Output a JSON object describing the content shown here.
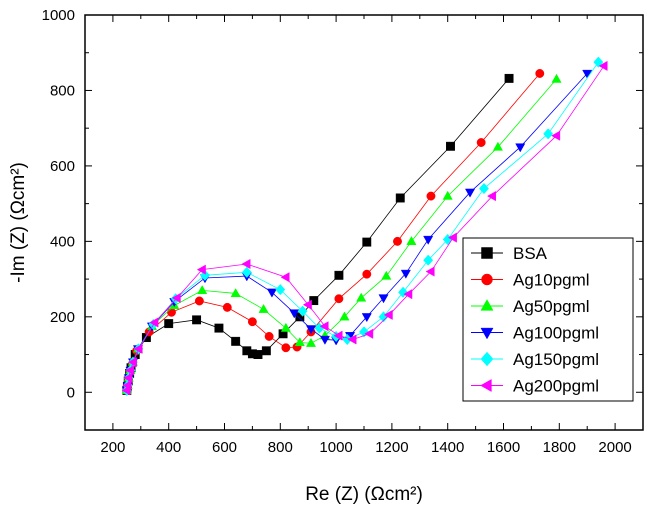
{
  "chart_data": {
    "type": "scatter",
    "title": "",
    "xlabel": "Re (Z) (Ωcm²)",
    "ylabel": "-Im (Z) (Ωcm²)",
    "xlim": [
      100,
      2100
    ],
    "ylim": [
      -100,
      1000
    ],
    "xticks": [
      200,
      400,
      600,
      800,
      1000,
      1200,
      1400,
      1600,
      1800,
      2000
    ],
    "yticks": [
      0,
      200,
      400,
      600,
      800,
      1000
    ],
    "grid": false,
    "legend_position": "bottom-right",
    "series": [
      {
        "name": "BSA",
        "color": "#000000",
        "marker": "square",
        "points": [
          [
            250,
            5
          ],
          [
            252,
            15
          ],
          [
            255,
            30
          ],
          [
            260,
            50
          ],
          [
            265,
            65
          ],
          [
            280,
            100
          ],
          [
            320,
            145
          ],
          [
            400,
            182
          ],
          [
            500,
            192
          ],
          [
            580,
            170
          ],
          [
            640,
            135
          ],
          [
            680,
            110
          ],
          [
            700,
            102
          ],
          [
            720,
            100
          ],
          [
            750,
            110
          ],
          [
            810,
            155
          ],
          [
            870,
            200
          ],
          [
            920,
            243
          ],
          [
            1010,
            310
          ],
          [
            1110,
            398
          ],
          [
            1230,
            515
          ],
          [
            1410,
            652
          ],
          [
            1620,
            832
          ]
        ]
      },
      {
        "name": "Ag10pgml",
        "color": "#ff0000",
        "marker": "circle",
        "points": [
          [
            250,
            5
          ],
          [
            253,
            18
          ],
          [
            256,
            35
          ],
          [
            262,
            55
          ],
          [
            270,
            75
          ],
          [
            285,
            110
          ],
          [
            330,
            160
          ],
          [
            410,
            212
          ],
          [
            510,
            242
          ],
          [
            610,
            225
          ],
          [
            700,
            187
          ],
          [
            760,
            148
          ],
          [
            820,
            118
          ],
          [
            860,
            120
          ],
          [
            910,
            160
          ],
          [
            1010,
            248
          ],
          [
            1110,
            313
          ],
          [
            1220,
            400
          ],
          [
            1340,
            520
          ],
          [
            1520,
            662
          ],
          [
            1730,
            845
          ]
        ]
      },
      {
        "name": "Ag50pgml",
        "color": "#00ff00",
        "marker": "triangle-up",
        "points": [
          [
            250,
            5
          ],
          [
            253,
            18
          ],
          [
            257,
            38
          ],
          [
            263,
            58
          ],
          [
            272,
            80
          ],
          [
            290,
            115
          ],
          [
            340,
            175
          ],
          [
            420,
            230
          ],
          [
            520,
            270
          ],
          [
            640,
            262
          ],
          [
            740,
            220
          ],
          [
            820,
            170
          ],
          [
            870,
            132
          ],
          [
            910,
            130
          ],
          [
            960,
            150
          ],
          [
            1030,
            200
          ],
          [
            1090,
            250
          ],
          [
            1180,
            308
          ],
          [
            1270,
            400
          ],
          [
            1400,
            520
          ],
          [
            1580,
            650
          ],
          [
            1790,
            830
          ]
        ]
      },
      {
        "name": "Ag100pgml",
        "color": "#0000ff",
        "marker": "triangle-down",
        "points": [
          [
            250,
            5
          ],
          [
            253,
            18
          ],
          [
            257,
            38
          ],
          [
            263,
            58
          ],
          [
            272,
            80
          ],
          [
            290,
            115
          ],
          [
            340,
            175
          ],
          [
            420,
            240
          ],
          [
            530,
            303
          ],
          [
            680,
            308
          ],
          [
            770,
            265
          ],
          [
            850,
            210
          ],
          [
            910,
            168
          ],
          [
            960,
            140
          ],
          [
            1000,
            138
          ],
          [
            1050,
            150
          ],
          [
            1110,
            200
          ],
          [
            1170,
            250
          ],
          [
            1250,
            315
          ],
          [
            1330,
            405
          ],
          [
            1480,
            530
          ],
          [
            1660,
            650
          ],
          [
            1900,
            845
          ]
        ]
      },
      {
        "name": "Ag150pgml",
        "color": "#00ffff",
        "marker": "diamond",
        "points": [
          [
            250,
            5
          ],
          [
            253,
            18
          ],
          [
            257,
            38
          ],
          [
            263,
            58
          ],
          [
            272,
            80
          ],
          [
            292,
            115
          ],
          [
            345,
            180
          ],
          [
            425,
            248
          ],
          [
            530,
            310
          ],
          [
            680,
            318
          ],
          [
            800,
            272
          ],
          [
            880,
            215
          ],
          [
            940,
            170
          ],
          [
            1000,
            148
          ],
          [
            1040,
            140
          ],
          [
            1100,
            160
          ],
          [
            1170,
            200
          ],
          [
            1240,
            265
          ],
          [
            1330,
            350
          ],
          [
            1400,
            405
          ],
          [
            1530,
            540
          ],
          [
            1760,
            685
          ],
          [
            1940,
            875
          ]
        ]
      },
      {
        "name": "Ag200pgml",
        "color": "#ff00ff",
        "marker": "triangle-left",
        "points": [
          [
            250,
            5
          ],
          [
            253,
            18
          ],
          [
            257,
            38
          ],
          [
            263,
            58
          ],
          [
            273,
            80
          ],
          [
            293,
            115
          ],
          [
            350,
            185
          ],
          [
            430,
            250
          ],
          [
            520,
            325
          ],
          [
            680,
            340
          ],
          [
            820,
            305
          ],
          [
            900,
            232
          ],
          [
            960,
            175
          ],
          [
            1010,
            150
          ],
          [
            1060,
            140
          ],
          [
            1120,
            155
          ],
          [
            1190,
            205
          ],
          [
            1260,
            260
          ],
          [
            1340,
            320
          ],
          [
            1420,
            410
          ],
          [
            1560,
            520
          ],
          [
            1790,
            680
          ],
          [
            1960,
            865
          ]
        ]
      }
    ]
  }
}
